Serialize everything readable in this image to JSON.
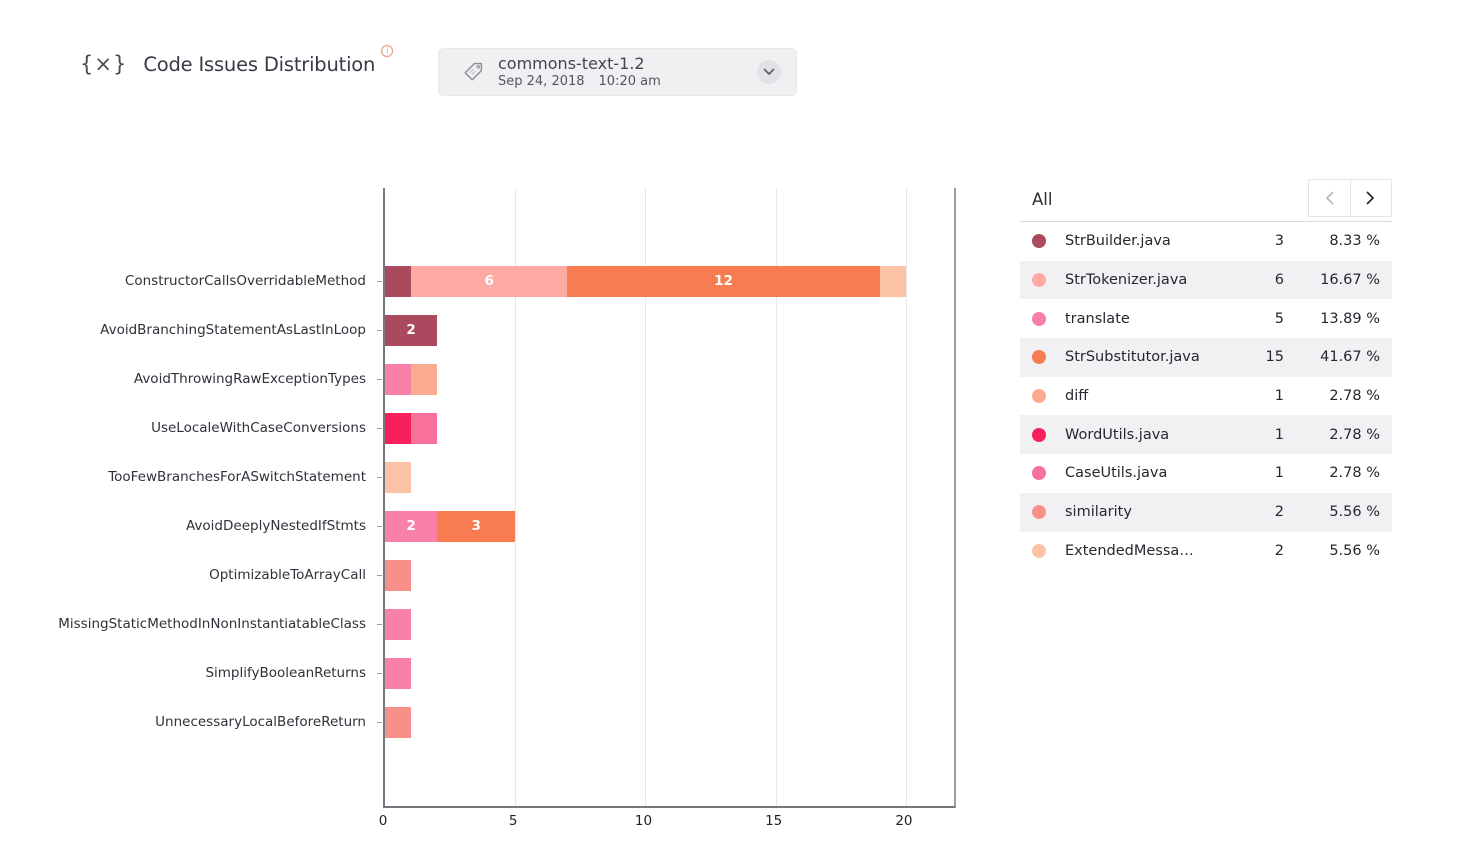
{
  "header": {
    "icon": "{×}",
    "title": "Code Issues Distribution",
    "info_icon": "i",
    "snapshot": {
      "name": "commons-text-1.2",
      "date": "Sep 24, 2018",
      "time": "10:20 am"
    }
  },
  "panel": {
    "filter_label": "All",
    "rows": [
      {
        "name": "StrBuilder.java",
        "count": 3,
        "percent": "8.33 %",
        "color": "#ab4a5f"
      },
      {
        "name": "StrTokenizer.java",
        "count": 6,
        "percent": "16.67 %",
        "color": "#fda9a4"
      },
      {
        "name": "translate",
        "count": 5,
        "percent": "13.89 %",
        "color": "#f980a8"
      },
      {
        "name": "StrSubstitutor.java",
        "count": 15,
        "percent": "41.67 %",
        "color": "#f87c51"
      },
      {
        "name": "diff",
        "count": 1,
        "percent": "2.78 %",
        "color": "#fbac90"
      },
      {
        "name": "WordUtils.java",
        "count": 1,
        "percent": "2.78 %",
        "color": "#f7205c"
      },
      {
        "name": "CaseUtils.java",
        "count": 1,
        "percent": "2.78 %",
        "color": "#f7719a"
      },
      {
        "name": "similarity",
        "count": 2,
        "percent": "5.56 %",
        "color": "#f8908a"
      },
      {
        "name": "ExtendedMessa…",
        "count": 2,
        "percent": "5.56 %",
        "color": "#fcc2a6"
      }
    ]
  },
  "chart_data": {
    "type": "bar",
    "orientation": "horizontal",
    "stacked": true,
    "title": "Code Issues Distribution",
    "xlabel": "",
    "ylabel": "",
    "xlim": [
      0,
      22
    ],
    "xticks": [
      0,
      5,
      10,
      15,
      20
    ],
    "grid": true,
    "legend_position": "right-table",
    "value_label_min": 2,
    "categories": [
      "ConstructorCallsOverridableMethod",
      "AvoidBranchingStatementAsLastInLoop",
      "AvoidThrowingRawExceptionTypes",
      "UseLocaleWithCaseConversions",
      "TooFewBranchesForASwitchStatement",
      "AvoidDeeplyNestedIfStmts",
      "OptimizableToArrayCall",
      "MissingStaticMethodInNonInstantiatableClass",
      "SimplifyBooleanReturns",
      "UnnecessaryLocalBeforeReturn"
    ],
    "bars": [
      {
        "category": "ConstructorCallsOverridableMethod",
        "segments": [
          {
            "file": "StrBuilder.java",
            "value": 1
          },
          {
            "file": "StrTokenizer.java",
            "value": 6
          },
          {
            "file": "StrSubstitutor.java",
            "value": 12
          },
          {
            "file": "ExtendedMessa…",
            "value": 1
          }
        ]
      },
      {
        "category": "AvoidBranchingStatementAsLastInLoop",
        "segments": [
          {
            "file": "StrBuilder.java",
            "value": 2
          }
        ]
      },
      {
        "category": "AvoidThrowingRawExceptionTypes",
        "segments": [
          {
            "file": "translate",
            "value": 1
          },
          {
            "file": "diff",
            "value": 1
          }
        ]
      },
      {
        "category": "UseLocaleWithCaseConversions",
        "segments": [
          {
            "file": "WordUtils.java",
            "value": 1
          },
          {
            "file": "CaseUtils.java",
            "value": 1
          }
        ]
      },
      {
        "category": "TooFewBranchesForASwitchStatement",
        "segments": [
          {
            "file": "ExtendedMessa…",
            "value": 1
          }
        ]
      },
      {
        "category": "AvoidDeeplyNestedIfStmts",
        "segments": [
          {
            "file": "translate",
            "value": 2
          },
          {
            "file": "StrSubstitutor.java",
            "value": 3
          }
        ]
      },
      {
        "category": "OptimizableToArrayCall",
        "segments": [
          {
            "file": "similarity",
            "value": 1
          }
        ]
      },
      {
        "category": "MissingStaticMethodInNonInstantiatableClass",
        "segments": [
          {
            "file": "translate",
            "value": 1
          }
        ]
      },
      {
        "category": "SimplifyBooleanReturns",
        "segments": [
          {
            "file": "translate",
            "value": 1
          }
        ]
      },
      {
        "category": "UnnecessaryLocalBeforeReturn",
        "segments": [
          {
            "file": "similarity",
            "value": 1
          }
        ]
      }
    ]
  }
}
